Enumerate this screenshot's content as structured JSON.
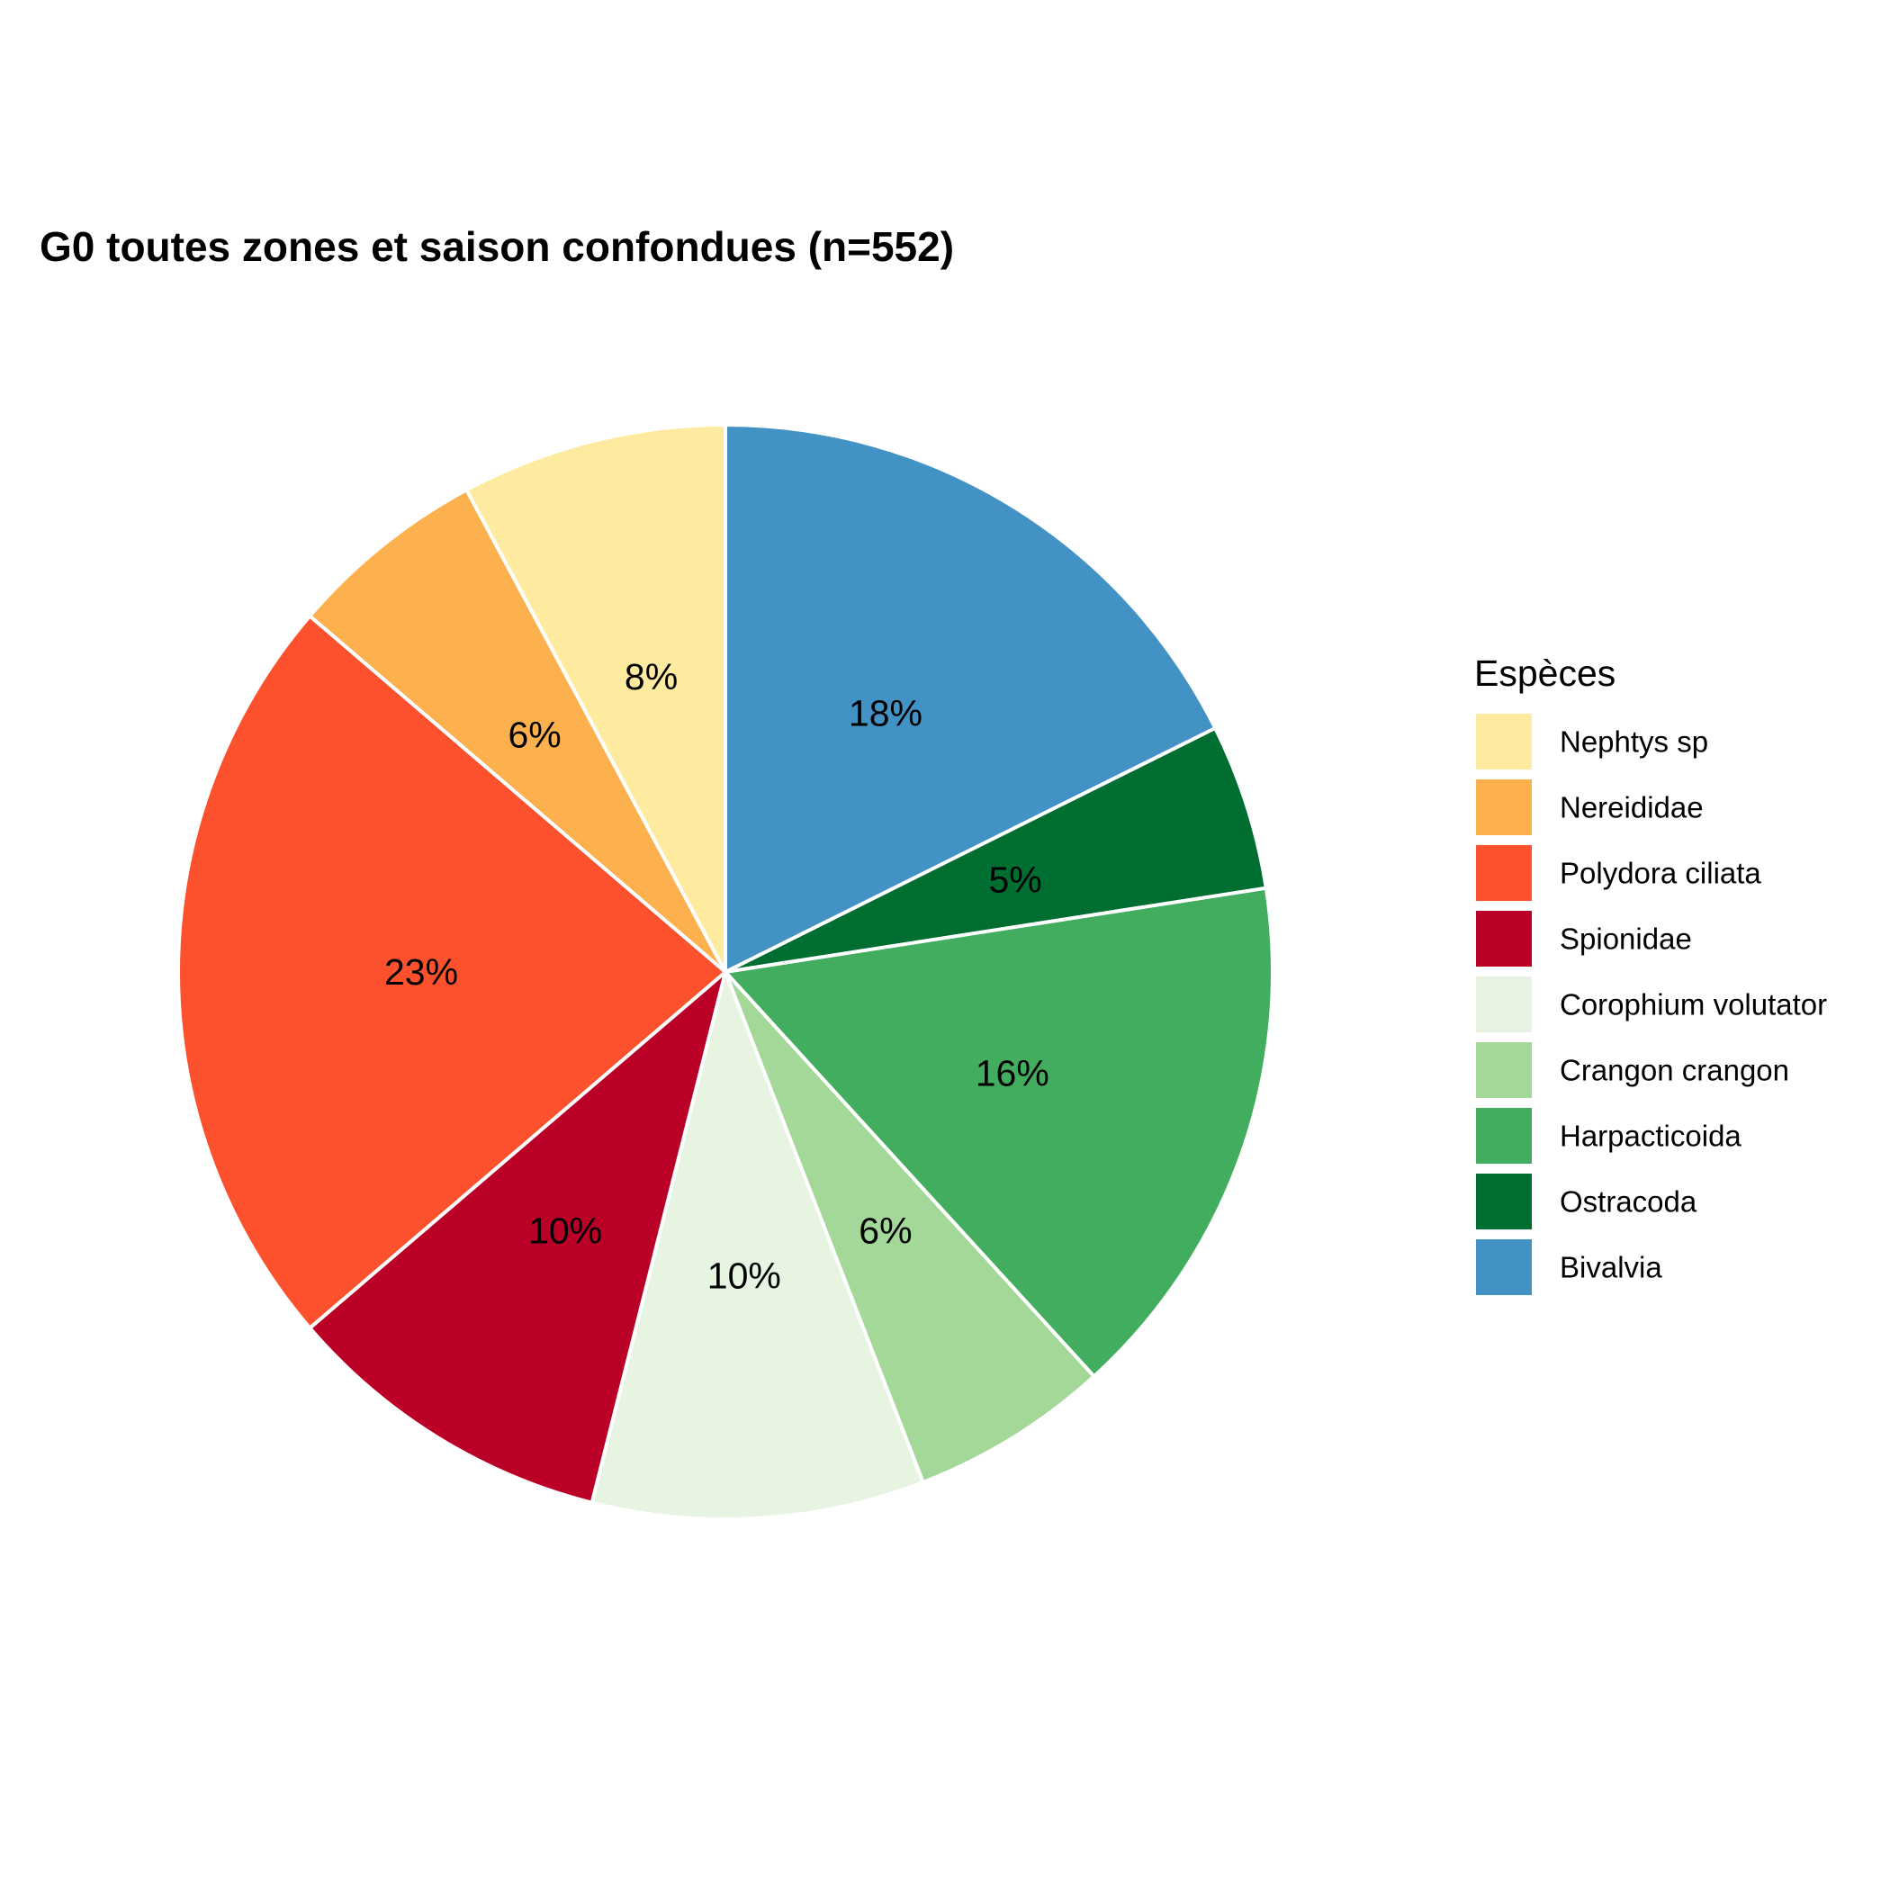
{
  "chart_data": {
    "type": "pie",
    "title": "G0 toutes zones et saison confondues (n=552)",
    "legend_title": "Espèces",
    "legend_position": "right",
    "direction": "clockwise from top",
    "slices": [
      {
        "name": "Bivalvia",
        "value": 18,
        "label": "18%",
        "color": "#4392c5"
      },
      {
        "name": "Ostracoda",
        "value": 5,
        "label": "5%",
        "color": "#016e31"
      },
      {
        "name": "Harpacticoida",
        "value": 16,
        "label": "16%",
        "color": "#42ad5f"
      },
      {
        "name": "Crangon crangon",
        "value": 6,
        "label": "6%",
        "color": "#a3d898"
      },
      {
        "name": "Corophium volutator",
        "value": 10,
        "label": "10%",
        "color": "#e6f4e1"
      },
      {
        "name": "Spionidae",
        "value": 10,
        "label": "10%",
        "color": "#bb0027"
      },
      {
        "name": "Polydora ciliata",
        "value": 23,
        "label": "23%",
        "color": "#fd512e"
      },
      {
        "name": "Nereididae",
        "value": 6,
        "label": "6%",
        "color": "#fdb14e"
      },
      {
        "name": "Nephtys sp",
        "value": 8,
        "label": "8%",
        "color": "#feeb9f"
      }
    ],
    "legend_order": [
      "Nephtys sp",
      "Nereididae",
      "Polydora ciliata",
      "Spionidae",
      "Corophium volutator",
      "Crangon crangon",
      "Harpacticoida",
      "Ostracoda",
      "Bivalvia"
    ]
  }
}
